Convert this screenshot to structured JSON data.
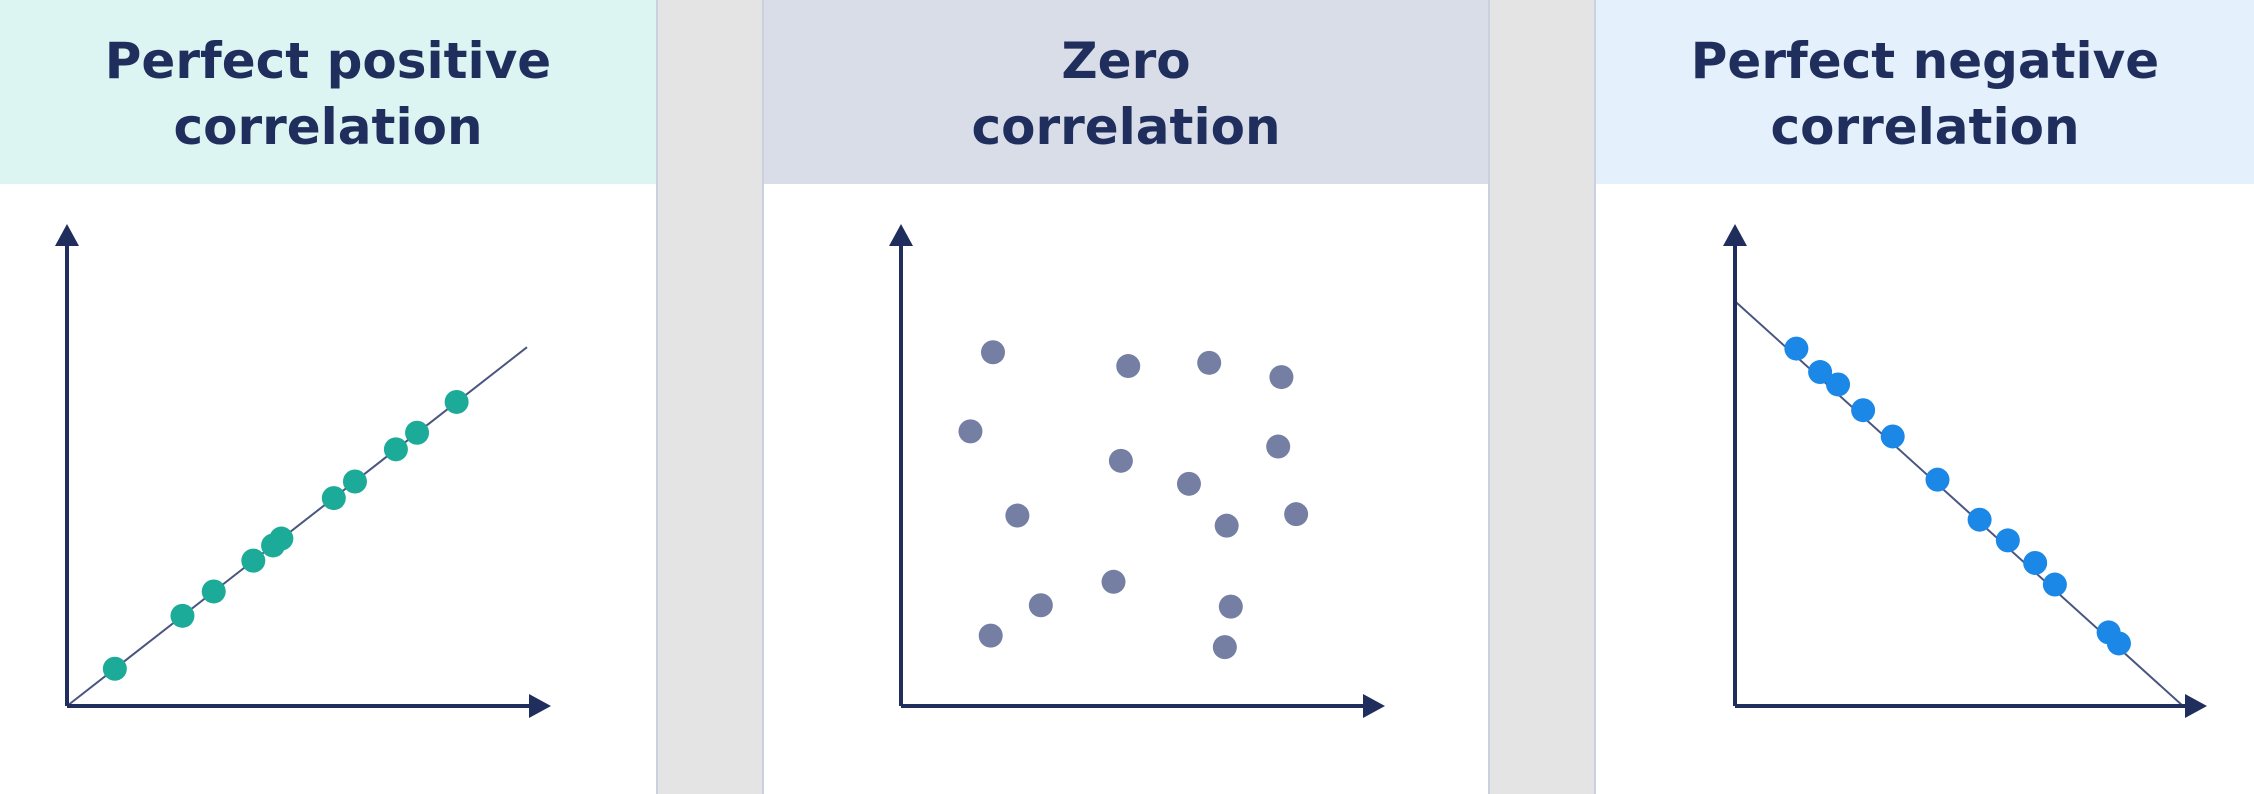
{
  "chart_data": [
    {
      "type": "scatter",
      "title": "Perfect positive correlation",
      "header_bg": "#dcf5f2",
      "point_color": "#1bab98",
      "trendline": {
        "from": [
          0,
          0
        ],
        "to": [
          100,
          78
        ]
      },
      "xlim": [
        0,
        100
      ],
      "ylim": [
        0,
        100
      ],
      "grid": false,
      "points": [
        {
          "x": 10.4,
          "y": 8.1
        },
        {
          "x": 25.1,
          "y": 19.6
        },
        {
          "x": 31.9,
          "y": 24.9
        },
        {
          "x": 40.5,
          "y": 31.6
        },
        {
          "x": 44.8,
          "y": 34.9
        },
        {
          "x": 46.6,
          "y": 36.4
        },
        {
          "x": 58.0,
          "y": 45.2
        },
        {
          "x": 62.6,
          "y": 48.8
        },
        {
          "x": 71.5,
          "y": 55.8
        },
        {
          "x": 76.1,
          "y": 59.4
        },
        {
          "x": 84.7,
          "y": 66.1
        }
      ]
    },
    {
      "type": "scatter",
      "title": "Zero\ncorrelation",
      "header_bg": "#d8dde8",
      "point_color": "#747fa3",
      "xlim": [
        0,
        100
      ],
      "ylim": [
        0,
        100
      ],
      "grid": false,
      "points": [
        {
          "x": 20.0,
          "y": 76.9
        },
        {
          "x": 49.4,
          "y": 73.9
        },
        {
          "x": 67.0,
          "y": 74.6
        },
        {
          "x": 82.7,
          "y": 71.5
        },
        {
          "x": 15.1,
          "y": 59.7
        },
        {
          "x": 47.8,
          "y": 53.3
        },
        {
          "x": 82.0,
          "y": 56.4
        },
        {
          "x": 62.6,
          "y": 48.3
        },
        {
          "x": 25.3,
          "y": 41.4
        },
        {
          "x": 70.8,
          "y": 39.2
        },
        {
          "x": 85.9,
          "y": 41.7
        },
        {
          "x": 46.2,
          "y": 27.0
        },
        {
          "x": 30.4,
          "y": 21.9
        },
        {
          "x": 71.7,
          "y": 21.6
        },
        {
          "x": 19.5,
          "y": 15.3
        },
        {
          "x": 70.4,
          "y": 12.8
        }
      ]
    },
    {
      "type": "scatter",
      "title": "Perfect negative correlation",
      "header_bg": "#e4f0fb",
      "point_color": "#1b87e6",
      "trendline": {
        "from": [
          0,
          88
        ],
        "to": [
          100,
          0
        ]
      },
      "xlim": [
        0,
        100
      ],
      "ylim": [
        0,
        100
      ],
      "grid": false,
      "points": [
        {
          "x": 13.7,
          "y": 77.7
        },
        {
          "x": 19.0,
          "y": 72.6
        },
        {
          "x": 23.0,
          "y": 69.9
        },
        {
          "x": 28.6,
          "y": 64.3
        },
        {
          "x": 35.2,
          "y": 58.6
        },
        {
          "x": 45.2,
          "y": 49.2
        },
        {
          "x": 54.6,
          "y": 40.5
        },
        {
          "x": 60.9,
          "y": 36.0
        },
        {
          "x": 67.0,
          "y": 31.1
        },
        {
          "x": 71.4,
          "y": 26.4
        },
        {
          "x": 83.4,
          "y": 16.0
        },
        {
          "x": 85.7,
          "y": 13.6
        }
      ]
    }
  ]
}
